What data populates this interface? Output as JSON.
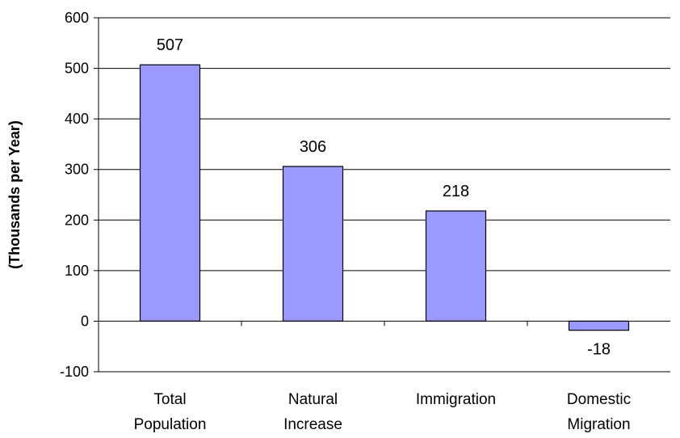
{
  "chart_data": {
    "type": "bar",
    "categories": [
      [
        "Total",
        "Population"
      ],
      [
        "Natural",
        "Increase"
      ],
      [
        "Immigration"
      ],
      [
        "Domestic",
        "Migration"
      ]
    ],
    "values": [
      507,
      306,
      218,
      -18
    ],
    "data_labels": [
      "507",
      "306",
      "218",
      "-18"
    ],
    "title": "",
    "xlabel": "",
    "ylabel": "(Thousands per Year)",
    "ylim": [
      -100,
      600
    ],
    "yticks": [
      600,
      500,
      400,
      300,
      200,
      100,
      0,
      -100
    ],
    "grid": true,
    "bar_color": "#9999ff",
    "bar_edge_color": "#000000"
  }
}
